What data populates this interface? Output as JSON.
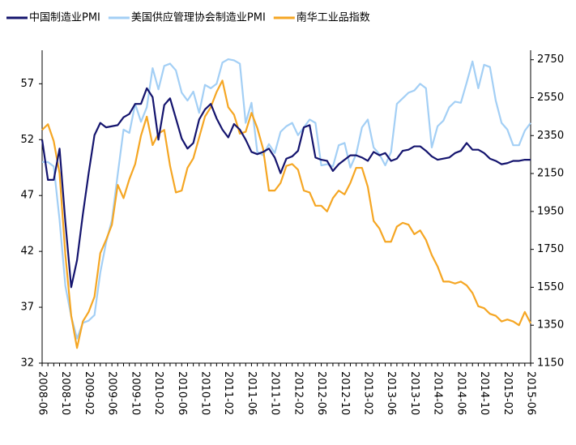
{
  "chart_data": {
    "type": "line",
    "categories": [
      "2008-06",
      null,
      null,
      null,
      "2008-10",
      null,
      null,
      null,
      "2009-02",
      null,
      null,
      null,
      "2009-06",
      null,
      null,
      null,
      "2009-10",
      null,
      null,
      null,
      "2010-02",
      null,
      null,
      null,
      "2010-06",
      null,
      null,
      null,
      "2010-10",
      null,
      null,
      null,
      "2011-02",
      null,
      null,
      null,
      "2011-06",
      null,
      null,
      null,
      "2011-10",
      null,
      null,
      null,
      "2012-02",
      null,
      null,
      null,
      "2012-06",
      null,
      null,
      null,
      "2012-10",
      null,
      null,
      null,
      "2013-02",
      null,
      null,
      null,
      "2013-06",
      null,
      null,
      null,
      "2013-10",
      null,
      null,
      null,
      "2014-02",
      null,
      null,
      null,
      "2014-06",
      null,
      null,
      null,
      "2014-10",
      null,
      null,
      null,
      "2015-02",
      null,
      null,
      null,
      "2015-06"
    ],
    "series": [
      {
        "name": "中国制造业PMI",
        "color": "#14146e",
        "values": [
          52,
          48.4,
          48.4,
          51.2,
          44.6,
          38.8,
          41.2,
          45.3,
          49,
          52.4,
          53.5,
          53.1,
          53.2,
          53.3,
          54,
          54.3,
          55.2,
          55.2,
          56.6,
          55.8,
          52,
          55.1,
          55.7,
          53.9,
          52.1,
          51.2,
          51.7,
          53.8,
          54.7,
          55.2,
          53.9,
          52.9,
          52.2,
          53.4,
          52.9,
          52,
          50.9,
          50.7,
          50.9,
          51.2,
          50.4,
          49,
          50.3,
          50.5,
          51,
          53.1,
          53.3,
          50.4,
          50.2,
          50.1,
          49.2,
          49.8,
          50.2,
          50.6,
          50.6,
          50.4,
          50.1,
          50.9,
          50.6,
          50.8,
          50.1,
          50.3,
          51,
          51.1,
          51.4,
          51.4,
          51,
          50.5,
          50.2,
          50.3,
          50.4,
          50.8,
          51,
          51.7,
          51.1,
          51.1,
          50.8,
          50.3,
          50.1,
          49.8,
          49.9,
          50.1,
          50.1,
          50.2,
          50.2
        ]
      },
      {
        "name": "美国供应管理协会制造业PMI",
        "color": "#a3cff5",
        "values": [
          50,
          50,
          49.6,
          44.8,
          38.9,
          36.2,
          34.2,
          35.6,
          35.8,
          36.3,
          40.1,
          42.8,
          44.8,
          48.9,
          52.9,
          52.6,
          55.2,
          53.6,
          54.9,
          58.4,
          56.5,
          58.6,
          58.8,
          58.2,
          56.2,
          55.5,
          56.3,
          54.4,
          56.9,
          56.6,
          57,
          58.9,
          59.2,
          59.1,
          58.8,
          53.5,
          55.3,
          50.9,
          50.6,
          51.6,
          50.8,
          52.7,
          53.2,
          53.5,
          52.4,
          53.1,
          53.8,
          53.5,
          49.7,
          49.8,
          49.6,
          51.5,
          51.7,
          49.5,
          50.7,
          53.1,
          53.8,
          51.3,
          50.7,
          49.7,
          50.9,
          55.2,
          55.7,
          56.2,
          56.4,
          57,
          56.6,
          51.3,
          53.2,
          53.7,
          54.9,
          55.4,
          55.3,
          57.1,
          59,
          56.6,
          58.7,
          58.5,
          55.5,
          53.5,
          52.9,
          51.5,
          51.5,
          52.8,
          53.5
        ]
      },
      {
        "name": "南华工业品指数",
        "color": "#f5a623",
        "axis": "y2",
        "values": [
          2380,
          2410,
          2320,
          2150,
          1720,
          1400,
          1230,
          1370,
          1420,
          1500,
          1730,
          1800,
          1880,
          2090,
          2020,
          2120,
          2200,
          2350,
          2450,
          2300,
          2360,
          2380,
          2190,
          2050,
          2060,
          2180,
          2230,
          2340,
          2450,
          2500,
          2580,
          2640,
          2500,
          2460,
          2360,
          2370,
          2470,
          2390,
          2280,
          2060,
          2060,
          2100,
          2190,
          2200,
          2170,
          2060,
          2050,
          1980,
          1980,
          1950,
          2020,
          2060,
          2040,
          2100,
          2180,
          2180,
          2080,
          1900,
          1860,
          1790,
          1790,
          1870,
          1890,
          1880,
          1830,
          1850,
          1800,
          1720,
          1660,
          1580,
          1580,
          1570,
          1580,
          1560,
          1520,
          1450,
          1440,
          1410,
          1400,
          1370,
          1380,
          1370,
          1350,
          1420,
          1360
        ]
      }
    ],
    "ylim": [
      32,
      60
    ],
    "yticks": [
      32,
      37,
      42,
      47,
      52,
      57
    ],
    "y2lim": [
      1150,
      2800
    ],
    "y2ticks": [
      1150,
      1350,
      1550,
      1750,
      1950,
      2150,
      2350,
      2550,
      2750
    ],
    "grid": false,
    "legend": "top"
  }
}
